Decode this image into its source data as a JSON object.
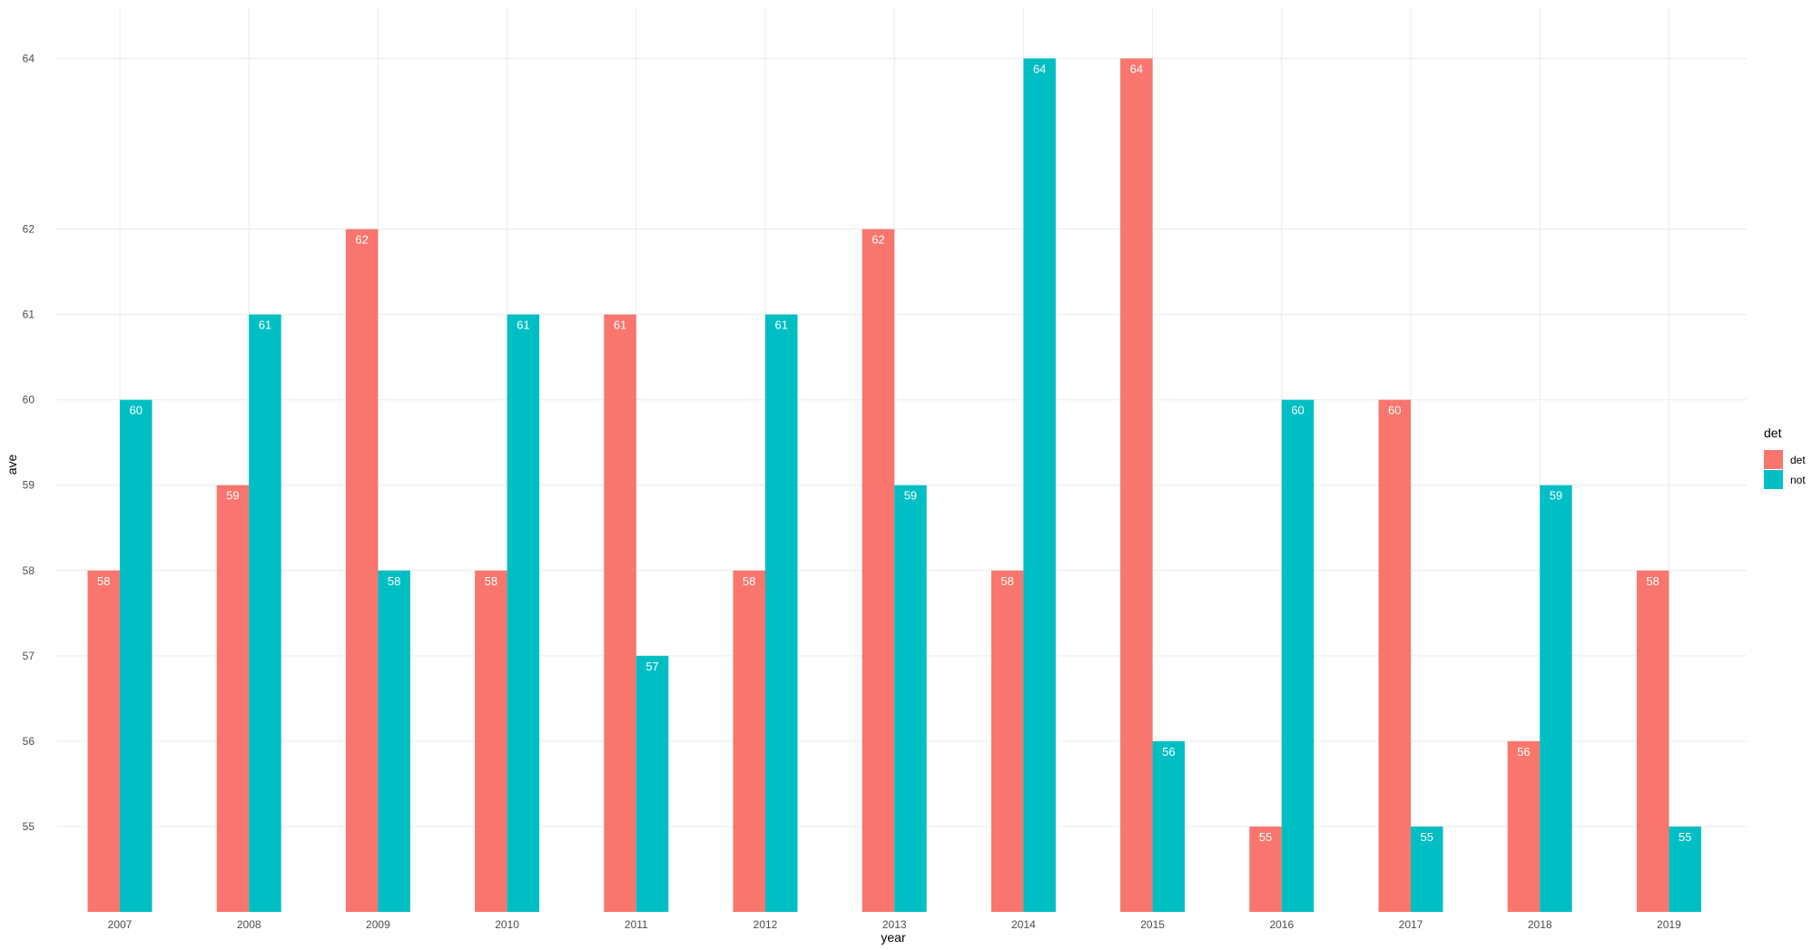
{
  "chart_data": {
    "type": "bar",
    "xlabel": "year",
    "ylabel": "ave",
    "categories": [
      "2007",
      "2008",
      "2009",
      "2010",
      "2011",
      "2012",
      "2013",
      "2014",
      "2015",
      "2016",
      "2017",
      "2018",
      "2019"
    ],
    "series": [
      {
        "name": "det",
        "color": "#F8766D",
        "values": [
          58,
          59,
          62,
          58,
          61,
          58,
          62,
          58,
          64,
          55,
          60,
          56,
          58
        ]
      },
      {
        "name": "not",
        "color": "#00BFC4",
        "values": [
          60,
          61,
          58,
          61,
          57,
          61,
          59,
          64,
          56,
          60,
          55,
          59,
          55
        ]
      }
    ],
    "ylim": [
      54,
      64.6
    ],
    "yticks": [
      55,
      56,
      57,
      58,
      59,
      60,
      61,
      62,
      64
    ],
    "legend": {
      "title": "det",
      "position": "right"
    },
    "grid": true,
    "data_labels": true
  }
}
